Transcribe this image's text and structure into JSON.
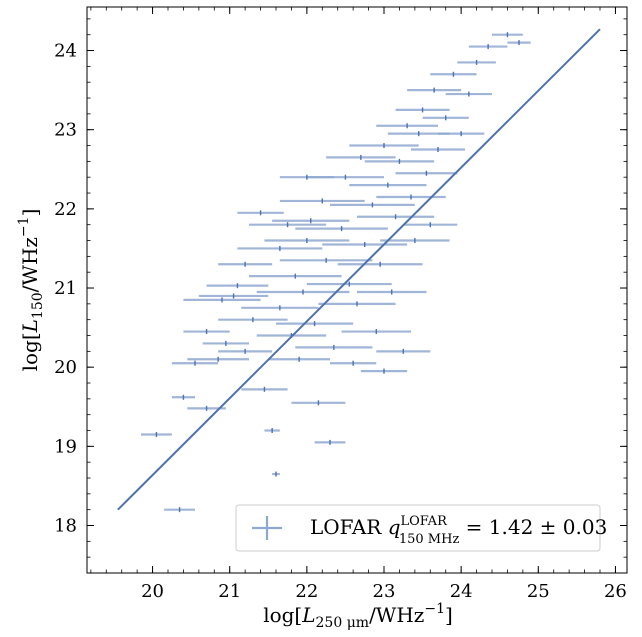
{
  "chart_data": {
    "type": "scatter",
    "xlabel": "log[L250µm/WHz−1]",
    "xlabel_parts": {
      "pre": "log[",
      "var": "L",
      "sub": "250 μm",
      "post": "/WHz",
      "sup": "−1",
      "close": "]"
    },
    "ylabel": "log[L150/WHz−1]",
    "ylabel_parts": {
      "pre": "log[",
      "var": "L",
      "sub": "150",
      "post": "/WHz",
      "sup": "−1",
      "close": "]"
    },
    "xlim": [
      19.15,
      26.15
    ],
    "ylim": [
      17.4,
      24.55
    ],
    "xticks": [
      "20",
      "21",
      "22",
      "23",
      "24",
      "25",
      "26"
    ],
    "yticks": [
      "18",
      "19",
      "20",
      "21",
      "22",
      "23",
      "24"
    ],
    "grid": false,
    "legend_position": "lower-right",
    "legend": {
      "prefix": "LOFAR",
      "q": "q",
      "q_sup": "LOFAR",
      "q_sub": "150 MHz",
      "suffix": " = 1.42 ± 0.03"
    },
    "colors": {
      "series": "#4c72b0",
      "errorbar": "#8fa8d0",
      "axis": "#000000"
    },
    "fit_line": {
      "x": [
        19.55,
        25.8
      ],
      "y": [
        18.2,
        24.27
      ]
    },
    "series": [
      {
        "note": "representative measurements with horizontal error bars (xerr in dex)",
        "points": [
          [
            20.05,
            19.15,
            0.2
          ],
          [
            20.35,
            18.2,
            0.2
          ],
          [
            20.4,
            19.62,
            0.15
          ],
          [
            20.55,
            20.05,
            0.3
          ],
          [
            20.7,
            19.48,
            0.25
          ],
          [
            20.85,
            20.1,
            0.4
          ],
          [
            20.7,
            20.45,
            0.3
          ],
          [
            20.9,
            20.85,
            0.5
          ],
          [
            21.1,
            21.03,
            0.4
          ],
          [
            21.2,
            21.3,
            0.35
          ],
          [
            21.05,
            20.9,
            0.45
          ],
          [
            21.3,
            20.6,
            0.45
          ],
          [
            21.45,
            19.72,
            0.3
          ],
          [
            21.6,
            18.65,
            0.05
          ],
          [
            21.55,
            19.2,
            0.1
          ],
          [
            21.65,
            21.5,
            0.55
          ],
          [
            21.75,
            21.8,
            0.5
          ],
          [
            21.65,
            20.75,
            0.5
          ],
          [
            21.8,
            20.4,
            0.45
          ],
          [
            21.9,
            20.1,
            0.4
          ],
          [
            21.85,
            21.15,
            0.6
          ],
          [
            22.0,
            21.6,
            0.55
          ],
          [
            21.95,
            20.95,
            0.6
          ],
          [
            22.05,
            21.85,
            0.5
          ],
          [
            22.2,
            22.1,
            0.55
          ],
          [
            22.1,
            20.55,
            0.5
          ],
          [
            22.25,
            21.35,
            0.6
          ],
          [
            22.35,
            20.25,
            0.5
          ],
          [
            22.15,
            19.55,
            0.35
          ],
          [
            22.3,
            19.05,
            0.2
          ],
          [
            22.45,
            21.75,
            0.6
          ],
          [
            22.5,
            22.4,
            0.5
          ],
          [
            22.55,
            21.05,
            0.55
          ],
          [
            22.65,
            20.8,
            0.5
          ],
          [
            22.7,
            22.65,
            0.45
          ],
          [
            22.75,
            21.55,
            0.55
          ],
          [
            22.85,
            22.05,
            0.55
          ],
          [
            22.9,
            20.45,
            0.45
          ],
          [
            22.95,
            21.3,
            0.55
          ],
          [
            23.0,
            22.8,
            0.45
          ],
          [
            23.05,
            22.3,
            0.5
          ],
          [
            23.1,
            20.95,
            0.45
          ],
          [
            23.15,
            21.9,
            0.5
          ],
          [
            23.2,
            22.6,
            0.45
          ],
          [
            23.25,
            20.2,
            0.35
          ],
          [
            23.3,
            23.05,
            0.4
          ],
          [
            23.35,
            22.15,
            0.45
          ],
          [
            23.4,
            21.6,
            0.45
          ],
          [
            23.45,
            22.95,
            0.4
          ],
          [
            23.5,
            23.25,
            0.35
          ],
          [
            23.55,
            22.45,
            0.4
          ],
          [
            23.6,
            21.8,
            0.35
          ],
          [
            23.65,
            23.5,
            0.35
          ],
          [
            23.7,
            22.75,
            0.35
          ],
          [
            23.8,
            23.15,
            0.3
          ],
          [
            23.9,
            23.7,
            0.3
          ],
          [
            24.0,
            22.95,
            0.3
          ],
          [
            24.1,
            23.45,
            0.3
          ],
          [
            24.2,
            23.85,
            0.25
          ],
          [
            24.35,
            24.05,
            0.25
          ],
          [
            24.6,
            24.2,
            0.2
          ],
          [
            24.75,
            24.1,
            0.15
          ],
          [
            22.6,
            20.05,
            0.3
          ],
          [
            23.0,
            19.95,
            0.3
          ],
          [
            21.4,
            21.95,
            0.3
          ],
          [
            22.0,
            22.4,
            0.35
          ],
          [
            21.2,
            20.2,
            0.35
          ],
          [
            20.95,
            20.3,
            0.3
          ]
        ]
      }
    ]
  }
}
